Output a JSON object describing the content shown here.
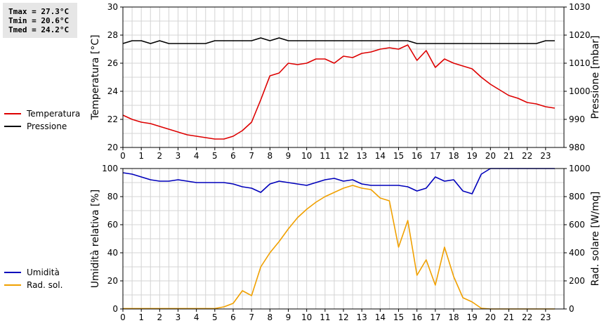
{
  "stats": {
    "tmax": "Tmax = 27.3°C",
    "tmin": "Tmin = 20.6°C",
    "tmed": "Tmed = 24.2°C"
  },
  "colors": {
    "temperature": "#dd0000",
    "pressure": "#000000",
    "humidity": "#0000bb",
    "radiation": "#f0a000",
    "grid": "#d4d4d4"
  },
  "chart_data": [
    {
      "type": "line",
      "x_ticks": [
        "0",
        "1",
        "2",
        "3",
        "4",
        "5",
        "6",
        "7",
        "8",
        "9",
        "10",
        "11",
        "12",
        "13",
        "14",
        "15",
        "16",
        "17",
        "18",
        "19",
        "20",
        "21",
        "22",
        "23"
      ],
      "xlim": [
        0,
        24
      ],
      "ylabel": "Temperatura [°C]",
      "ylim": [
        20,
        30
      ],
      "y_ticks": [
        "20",
        "22",
        "24",
        "26",
        "28",
        "30"
      ],
      "y2label": "Pressione [mbar]",
      "y2lim": [
        980,
        1030
      ],
      "y2_ticks": [
        "980",
        "990",
        "1000",
        "1010",
        "1020",
        "1030"
      ],
      "grid": true,
      "legend_placement": "left",
      "series": [
        {
          "name": "Temperatura",
          "axis": "left",
          "x": [
            0,
            0.5,
            1,
            1.5,
            2,
            2.5,
            3,
            3.5,
            4,
            4.5,
            5,
            5.5,
            6,
            6.5,
            7,
            7.5,
            8,
            8.5,
            9,
            9.5,
            10,
            10.5,
            11,
            11.5,
            12,
            12.5,
            13,
            13.5,
            14,
            14.5,
            15,
            15.5,
            16,
            16.5,
            17,
            17.5,
            18,
            18.5,
            19,
            19.5,
            20,
            20.5,
            21,
            21.5,
            22,
            22.5,
            23,
            23.5
          ],
          "values": [
            22.3,
            22.0,
            21.8,
            21.7,
            21.5,
            21.3,
            21.1,
            20.9,
            20.8,
            20.7,
            20.6,
            20.6,
            20.8,
            21.2,
            21.8,
            23.4,
            25.1,
            25.3,
            26.0,
            25.9,
            26.0,
            26.3,
            26.3,
            26.0,
            26.5,
            26.4,
            26.7,
            26.8,
            27.0,
            27.1,
            27.0,
            27.3,
            26.2,
            26.9,
            25.7,
            26.3,
            26.0,
            25.8,
            25.6,
            25.0,
            24.5,
            24.1,
            23.7,
            23.5,
            23.2,
            23.1,
            22.9,
            22.8
          ]
        },
        {
          "name": "Pressione",
          "axis": "right",
          "x": [
            0,
            0.5,
            1,
            1.5,
            2,
            2.5,
            3,
            3.5,
            4,
            4.5,
            5,
            5.5,
            6,
            6.5,
            7,
            7.5,
            8,
            8.5,
            9,
            9.5,
            10,
            10.5,
            11,
            11.5,
            12,
            12.5,
            13,
            13.5,
            14,
            14.5,
            15,
            15.5,
            16,
            16.5,
            17,
            17.5,
            18,
            18.5,
            19,
            19.5,
            20,
            20.5,
            21,
            21.5,
            22,
            22.5,
            23,
            23.5
          ],
          "values": [
            1017,
            1018,
            1018,
            1017,
            1018,
            1017,
            1017,
            1017,
            1017,
            1017,
            1018,
            1018,
            1018,
            1018,
            1018,
            1019,
            1018,
            1019,
            1018,
            1018,
            1018,
            1018,
            1018,
            1018,
            1018,
            1018,
            1018,
            1018,
            1018,
            1018,
            1018,
            1018,
            1017,
            1017,
            1017,
            1017,
            1017,
            1017,
            1017,
            1017,
            1017,
            1017,
            1017,
            1017,
            1017,
            1017,
            1018,
            1018
          ]
        }
      ]
    },
    {
      "type": "line",
      "x_ticks": [
        "0",
        "1",
        "2",
        "3",
        "4",
        "5",
        "6",
        "7",
        "8",
        "9",
        "10",
        "11",
        "12",
        "13",
        "14",
        "15",
        "16",
        "17",
        "18",
        "19",
        "20",
        "21",
        "22",
        "23"
      ],
      "xlim": [
        0,
        24
      ],
      "ylabel": "Umidità relativa [%]",
      "ylim": [
        0,
        100
      ],
      "y_ticks": [
        "0",
        "20",
        "40",
        "60",
        "80",
        "100"
      ],
      "y2label": "Rad. solare [W/mq]",
      "y2lim": [
        0,
        1000
      ],
      "y2_ticks": [
        "0",
        "200",
        "400",
        "600",
        "800",
        "1000"
      ],
      "grid": true,
      "legend_placement": "left",
      "series": [
        {
          "name": "Umidità",
          "axis": "left",
          "x": [
            0,
            0.5,
            1,
            1.5,
            2,
            2.5,
            3,
            3.5,
            4,
            4.5,
            5,
            5.5,
            6,
            6.5,
            7,
            7.5,
            8,
            8.5,
            9,
            9.5,
            10,
            10.5,
            11,
            11.5,
            12,
            12.5,
            13,
            13.5,
            14,
            14.5,
            15,
            15.5,
            16,
            16.5,
            17,
            17.5,
            18,
            18.5,
            19,
            19.5,
            20,
            20.5,
            21,
            21.5,
            22,
            22.5,
            23,
            23.5
          ],
          "values": [
            97,
            96,
            94,
            92,
            91,
            91,
            92,
            91,
            90,
            90,
            90,
            90,
            89,
            87,
            86,
            83,
            89,
            91,
            90,
            89,
            88,
            90,
            92,
            93,
            91,
            92,
            89,
            88,
            88,
            88,
            88,
            87,
            84,
            86,
            94,
            91,
            92,
            84,
            82,
            96,
            100,
            100,
            100,
            100,
            100,
            100,
            100,
            100
          ]
        },
        {
          "name": "Rad. sol.",
          "axis": "right",
          "x": [
            0,
            0.5,
            1,
            1.5,
            2,
            2.5,
            3,
            3.5,
            4,
            4.5,
            5,
            5.5,
            6,
            6.5,
            7,
            7.5,
            8,
            8.5,
            9,
            9.5,
            10,
            10.5,
            11,
            11.5,
            12,
            12.5,
            13,
            13.5,
            14,
            14.5,
            15,
            15.5,
            16,
            16.5,
            17,
            17.5,
            18,
            18.5,
            19,
            19.5,
            20,
            20.5,
            21,
            21.5,
            22,
            22.5,
            23,
            23.5
          ],
          "values": [
            3,
            3,
            3,
            3,
            3,
            3,
            3,
            3,
            3,
            3,
            3,
            15,
            40,
            130,
            95,
            300,
            400,
            480,
            570,
            650,
            710,
            760,
            800,
            830,
            860,
            880,
            860,
            850,
            790,
            770,
            440,
            630,
            240,
            350,
            170,
            440,
            230,
            80,
            50,
            5,
            0,
            0,
            0,
            0,
            0,
            0,
            0,
            0
          ]
        }
      ]
    }
  ]
}
